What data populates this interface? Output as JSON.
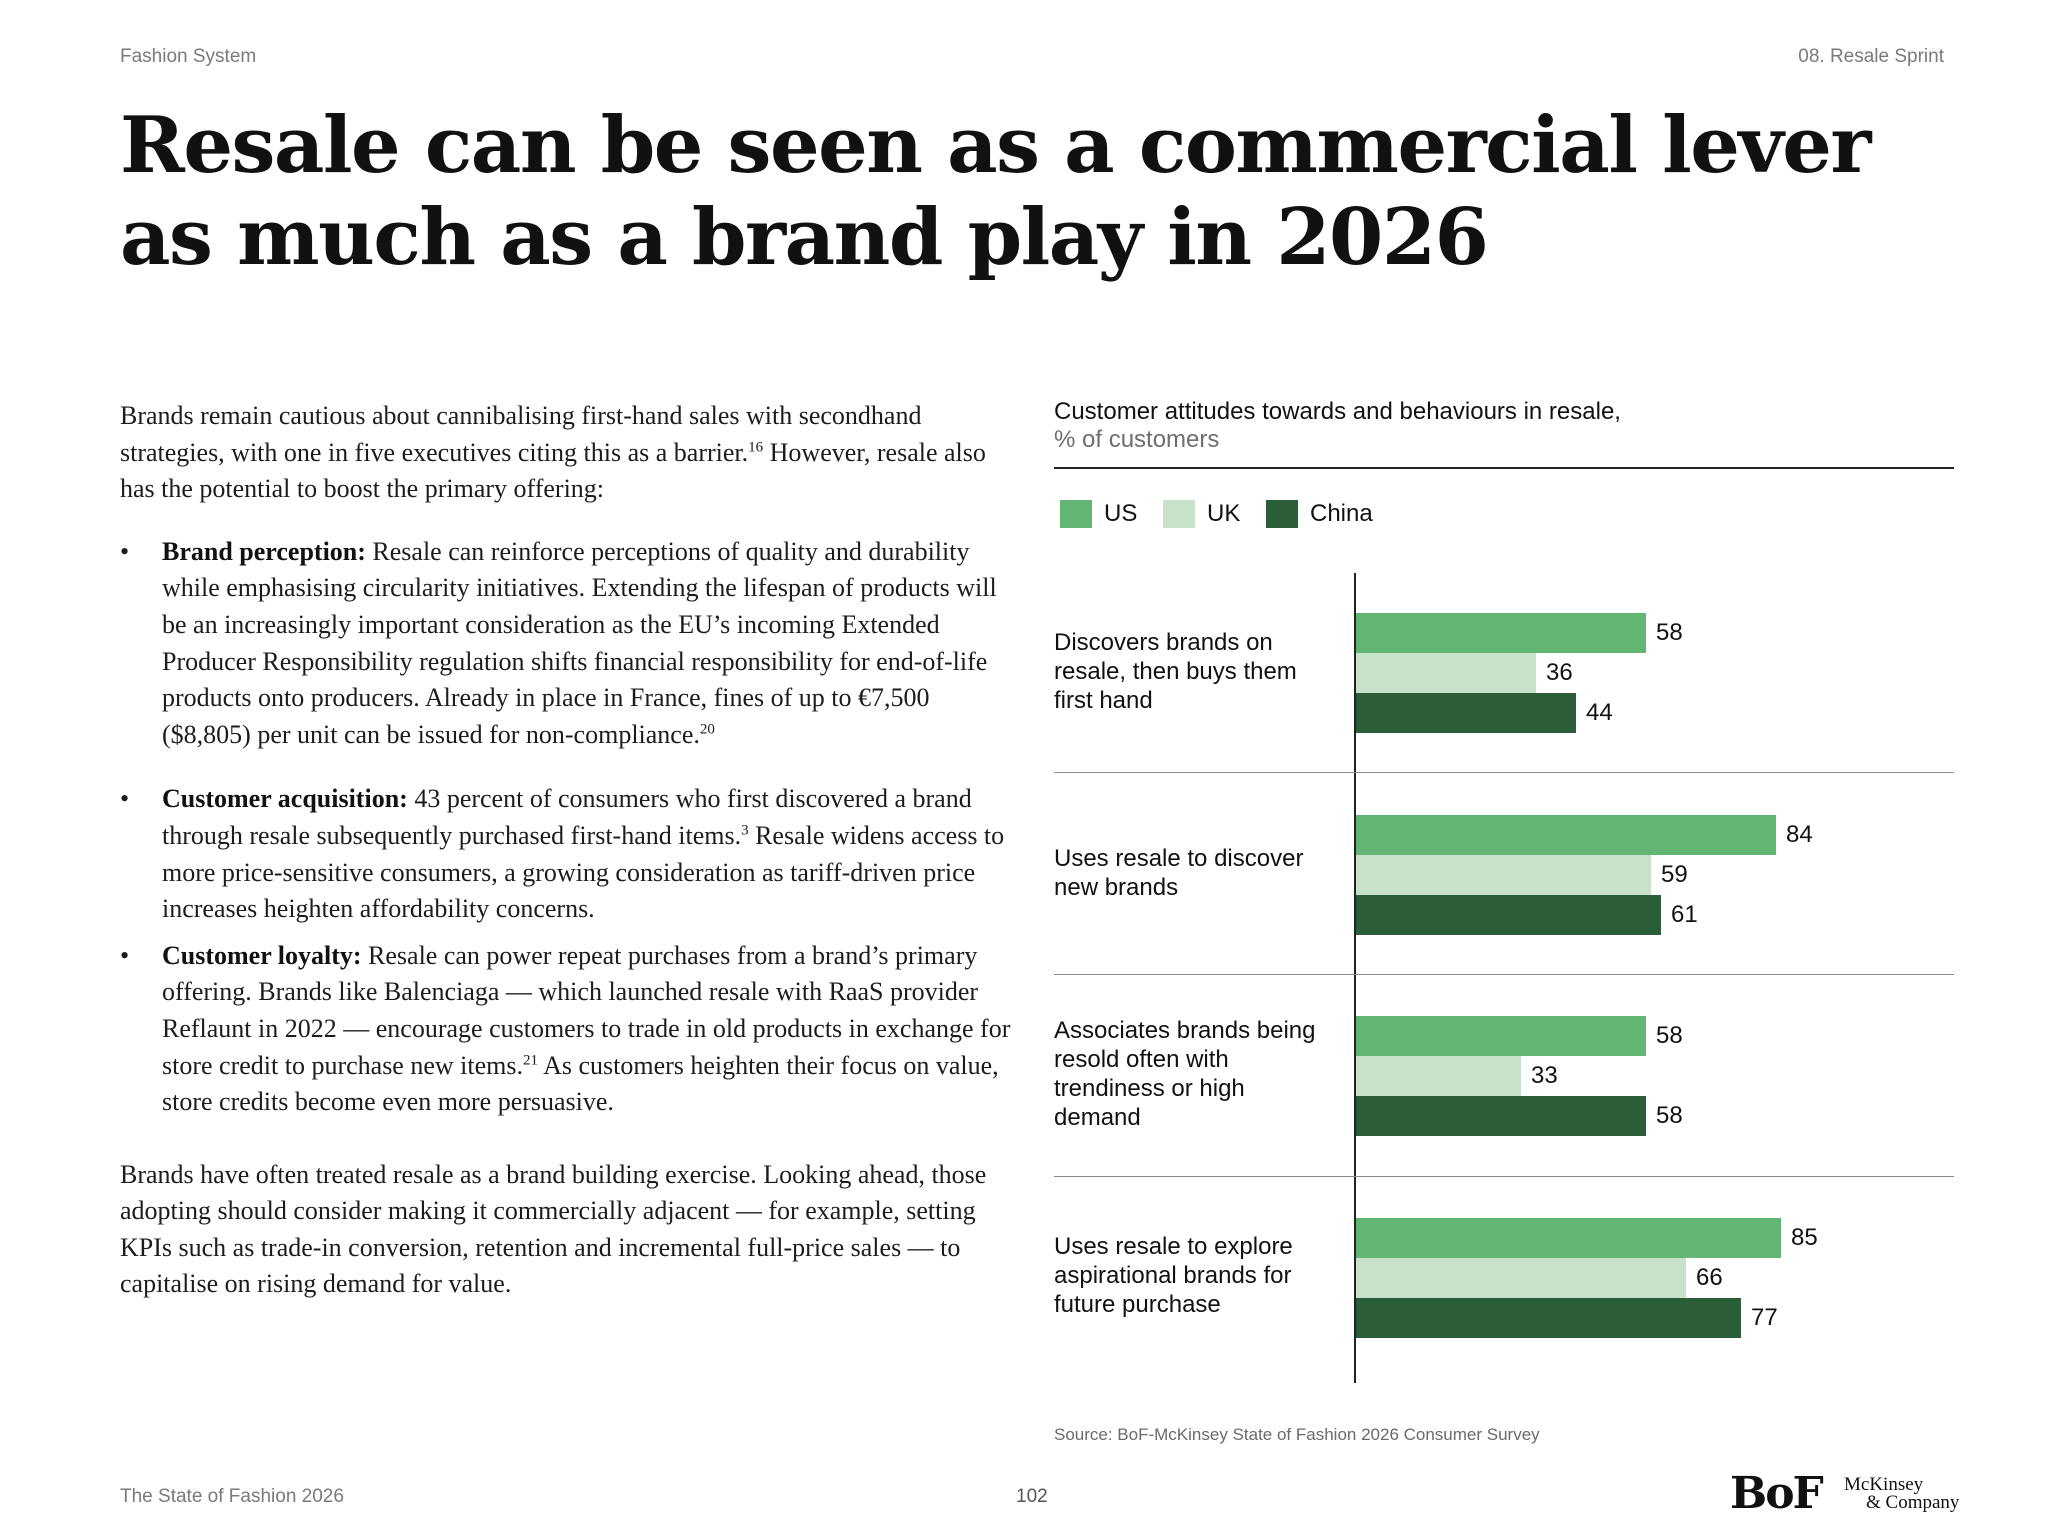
{
  "header": {
    "left": "Fashion System",
    "right": "08. Resale Sprint"
  },
  "title": "Resale can be seen as a commercial lever as much as a brand play in 2026",
  "body": {
    "intro": {
      "text": "Brands remain cautious about cannibalising first-hand sales with secondhand strategies, with one in five executives citing this as a barrier.",
      "sup": "16",
      "text2": " However, resale also has the potential to boost the primary offering:"
    },
    "bullets": [
      {
        "lead": "Brand perception:",
        "text": " Resale can reinforce perceptions of quality and durability while emphasising circularity initiatives. Extending the lifespan of products will be an increasingly important consideration as the EU’s incoming Extended Producer Responsibility regulation shifts financial responsibility for end-of-life products onto producers. Already in place in France, fines of up to €7,500 ($8,805) per unit can be issued for non-compliance.",
        "sup": "20",
        "text2": ""
      },
      {
        "lead": "Customer acquisition:",
        "text": " 43 percent of consumers who first discovered a brand through resale subsequently purchased first-hand items.",
        "sup": "3",
        "text2": " Resale widens access to more price-sensitive consumers, a growing consideration as tariff-driven price increases heighten affordability concerns."
      },
      {
        "lead": "Customer loyalty:",
        "text": " Resale can power repeat purchases from a brand’s primary offering. Brands like Balenciaga — which launched resale with RaaS provider Reflaunt in 2022 — encourage customers to trade in old products in exchange for store credit to purchase new items.",
        "sup": "21",
        "text2": " As customers heighten their focus on value, store credits become even more persuasive."
      }
    ],
    "closing": "Brands have often treated resale as a brand building exercise. Looking ahead, those adopting should consider making it commercially adjacent — for example, setting KPIs such as trade-in conversion, retention and incremental full-price sales — to capitalise on rising demand for value."
  },
  "chart_data": {
    "type": "bar",
    "orientation": "horizontal",
    "title": "Customer attitudes towards and behaviours in resale,",
    "unit": "% of customers",
    "categories": [
      "Discovers brands on resale, then buys them first hand",
      "Uses resale to discover new brands",
      "Associates brands being resold often with trendiness or high demand",
      "Uses resale to explore aspirational brands for future purchase"
    ],
    "series": [
      {
        "name": "US",
        "color": "#62b572",
        "values": [
          58,
          84,
          58,
          85
        ]
      },
      {
        "name": "UK",
        "color": "#c7e2c9",
        "values": [
          36,
          59,
          33,
          66
        ]
      },
      {
        "name": "China",
        "color": "#2a5e38",
        "values": [
          44,
          61,
          58,
          77
        ]
      }
    ],
    "xlim": [
      0,
      100
    ],
    "legend": "top-left",
    "data_labels": true
  },
  "source": "Source: BoF-McKinsey State of Fashion 2026 Consumer Survey",
  "footer": {
    "left": "The State of Fashion 2026",
    "page": "102"
  },
  "logos": {
    "bof": "BoF",
    "mckinsey_line1": "McKinsey",
    "mckinsey_line2": "& Company"
  }
}
